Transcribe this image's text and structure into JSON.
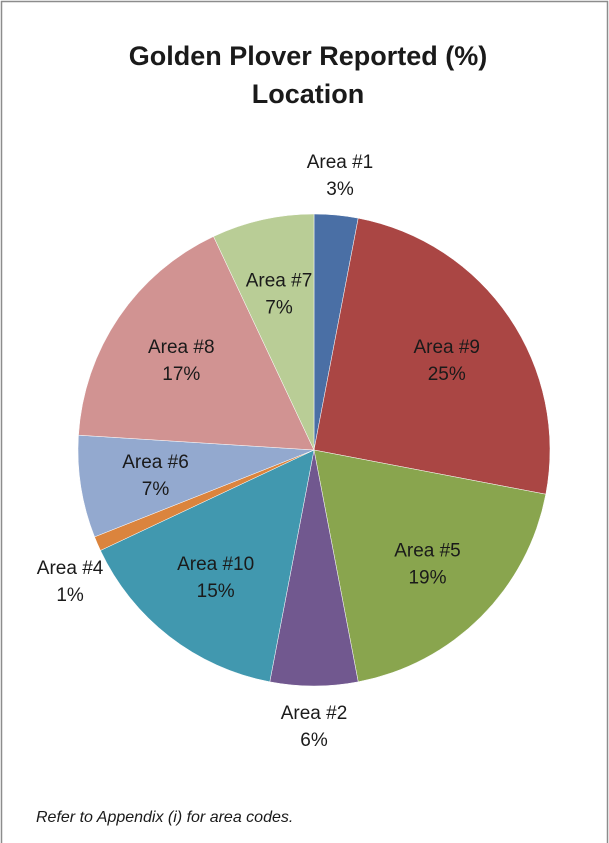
{
  "chart_data": {
    "type": "pie",
    "title": "Golden Plover Reported (%)",
    "subtitle": "Location",
    "categories": [
      "Area #1",
      "Area #9",
      "Area #5",
      "Area #2",
      "Area #10",
      "Area #4",
      "Area #6",
      "Area #8",
      "Area #7"
    ],
    "values": [
      3,
      25,
      19,
      6,
      15,
      1,
      7,
      17,
      7
    ],
    "value_labels": [
      "3%",
      "25%",
      "19%",
      "6%",
      "15%",
      "1%",
      "7%",
      "17%",
      "7%"
    ],
    "colors": [
      "#4a6fa5",
      "#aa4644",
      "#89a54e",
      "#71588f",
      "#4198af",
      "#db843d",
      "#93a9cf",
      "#d19392",
      "#b9cd96"
    ],
    "note": "Refer to Appendix (i) for area codes."
  }
}
